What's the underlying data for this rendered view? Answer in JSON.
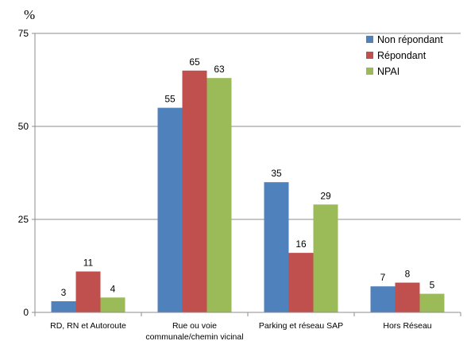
{
  "chart_data": {
    "type": "bar",
    "unit_label": "%",
    "categories": [
      "RD, RN et Autoroute",
      "Rue ou voie communale/chemin vicinal",
      "Parking et réseau SAP",
      "Hors Réseau"
    ],
    "category_lines": [
      [
        "RD, RN et Autoroute"
      ],
      [
        "Rue ou voie",
        "communale/chemin vicinal"
      ],
      [
        "Parking et réseau SAP"
      ],
      [
        "Hors Réseau"
      ]
    ],
    "series": [
      {
        "name": "Non répondant",
        "color": "#4f81bd",
        "values": [
          3,
          55,
          35,
          7
        ]
      },
      {
        "name": "Répondant",
        "color": "#c0504d",
        "values": [
          11,
          65,
          16,
          8
        ]
      },
      {
        "name": "NPAI",
        "color": "#9bbb59",
        "values": [
          4,
          63,
          29,
          5
        ]
      }
    ],
    "yticks": [
      0,
      25,
      50,
      75
    ],
    "ylim": [
      0,
      75
    ],
    "grid": true,
    "legend_position": "top-right",
    "data_labels": true
  }
}
